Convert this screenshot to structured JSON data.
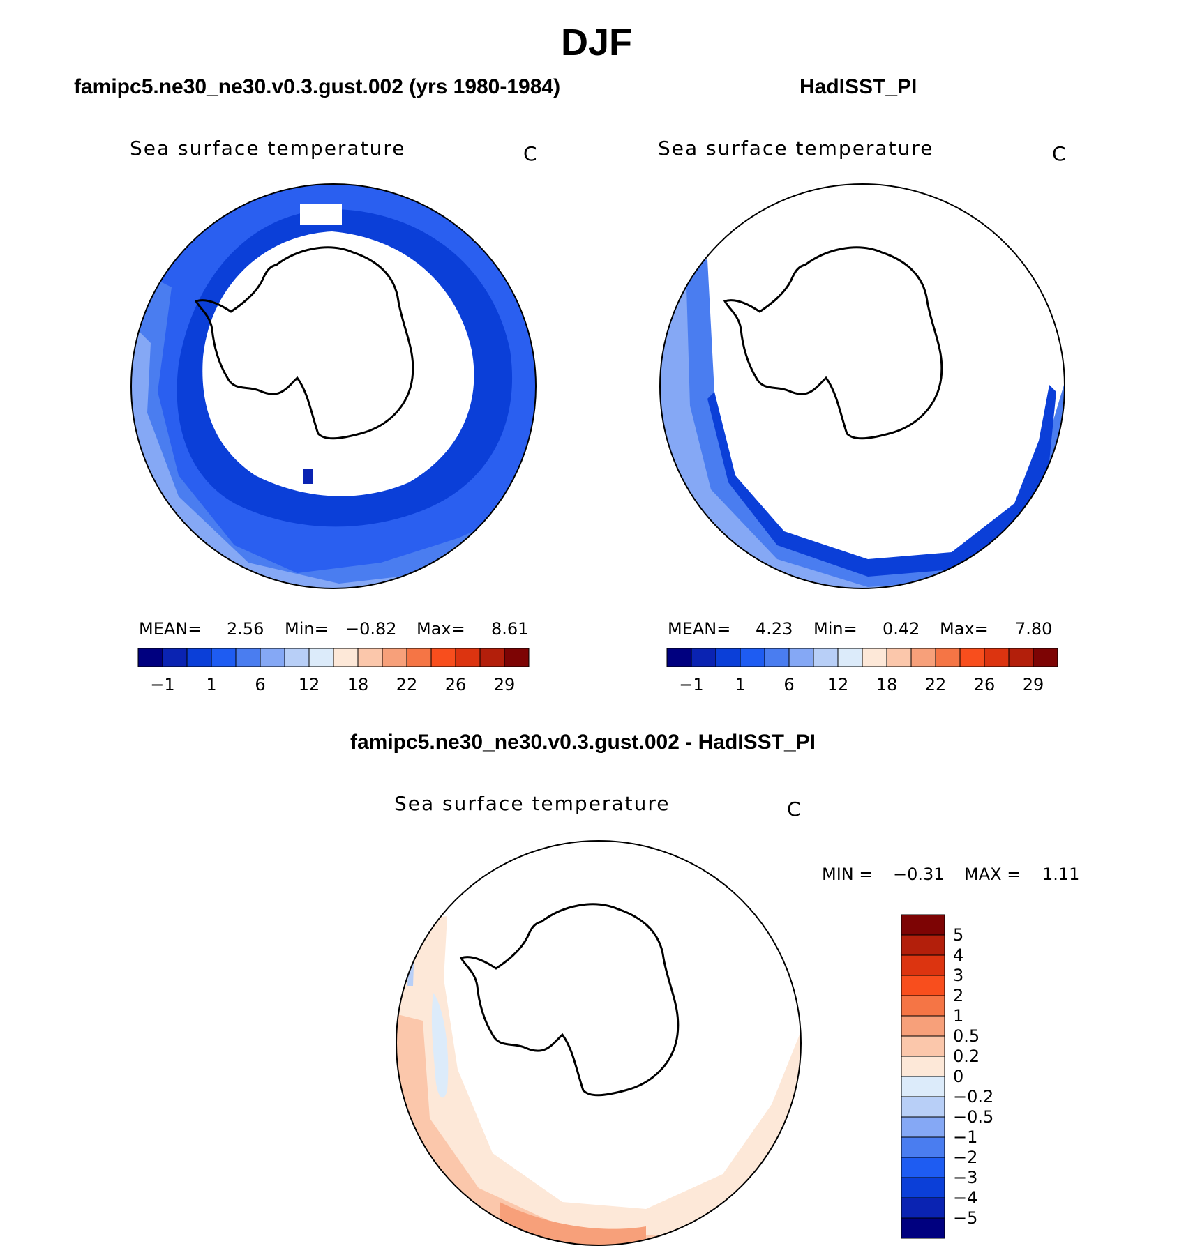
{
  "title": "DJF",
  "panels": [
    {
      "case_title": "famipc5.ne30_ne30.v0.3.gust.002 (yrs 1980-1984)",
      "variable": "Sea surface temperature",
      "units": "C",
      "mean_label": "MEAN=",
      "mean": "2.56",
      "min_label": "Min=",
      "min": "−0.82",
      "max_label": "Max=",
      "max": "8.61"
    },
    {
      "case_title": "HadISST_PI",
      "variable": "Sea surface temperature",
      "units": "C",
      "mean_label": "MEAN=",
      "mean": "4.23",
      "min_label": "Min=",
      "min": "0.42",
      "max_label": "Max=",
      "max": "7.80"
    }
  ],
  "diff_panel": {
    "case_title": "famipc5.ne30_ne30.v0.3.gust.002 - HadISST_PI",
    "variable": "Sea surface temperature",
    "units": "C",
    "min_label": "MIN =",
    "min": "−0.31",
    "max_label": "MAX =",
    "max": "1.11"
  },
  "chart_data": [
    {
      "type": "heatmap",
      "projection": "south polar stereographic",
      "title": "Sea surface temperature",
      "units": "C",
      "colorbar": {
        "orientation": "horizontal",
        "levels": [
          -1,
          1,
          6,
          12,
          18,
          22,
          26,
          29
        ],
        "tick_labels": [
          "−1",
          "1",
          "6",
          "12",
          "18",
          "22",
          "26",
          "29"
        ],
        "colors": [
          "#00007f",
          "#0a23b2",
          "#0b3fd8",
          "#1e5cf2",
          "#4a7df0",
          "#85a8f5",
          "#b8cff7",
          "#dcebfa",
          "#fde8d8",
          "#fbc7ab",
          "#f7a07a",
          "#f57545",
          "#f84e1d",
          "#dc3410",
          "#b31f0b",
          "#7d0404"
        ]
      },
      "stats": {
        "mean": 2.56,
        "min": -0.82,
        "max": 8.61
      }
    },
    {
      "type": "heatmap",
      "projection": "south polar stereographic",
      "title": "Sea surface temperature",
      "units": "C",
      "colorbar": {
        "orientation": "horizontal",
        "levels": [
          -1,
          1,
          6,
          12,
          18,
          22,
          26,
          29
        ],
        "tick_labels": [
          "−1",
          "1",
          "6",
          "12",
          "18",
          "22",
          "26",
          "29"
        ],
        "colors": [
          "#00007f",
          "#0a23b2",
          "#0b3fd8",
          "#1e5cf2",
          "#4a7df0",
          "#85a8f5",
          "#b8cff7",
          "#dcebfa",
          "#fde8d8",
          "#fbc7ab",
          "#f7a07a",
          "#f57545",
          "#f84e1d",
          "#dc3410",
          "#b31f0b",
          "#7d0404"
        ]
      },
      "stats": {
        "mean": 4.23,
        "min": 0.42,
        "max": 7.8
      }
    },
    {
      "type": "heatmap",
      "projection": "south polar stereographic",
      "title": "Sea surface temperature",
      "units": "C",
      "colorbar": {
        "orientation": "vertical",
        "levels": [
          5,
          4,
          3,
          2,
          1,
          0.5,
          0.2,
          0,
          -0.2,
          -0.5,
          -1,
          -2,
          -3,
          -4,
          -5
        ],
        "tick_labels": [
          "5",
          "4",
          "3",
          "2",
          "1",
          "0.5",
          "0.2",
          "0",
          "−0.2",
          "−0.5",
          "−1",
          "−2",
          "−3",
          "−4",
          "−5"
        ],
        "colors": [
          "#7d0404",
          "#b31f0b",
          "#dc3410",
          "#f84e1d",
          "#f57545",
          "#f7a07a",
          "#fbc7ab",
          "#fde8d8",
          "#dcebfa",
          "#b8cff7",
          "#85a8f5",
          "#4a7df0",
          "#1e5cf2",
          "#0b3fd8",
          "#0a23b2",
          "#00007f"
        ]
      },
      "stats": {
        "min": -0.31,
        "max": 1.11
      }
    }
  ]
}
